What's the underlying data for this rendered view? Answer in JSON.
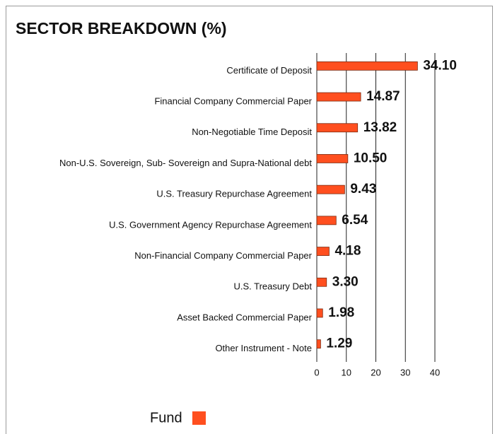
{
  "chart_data": {
    "type": "bar",
    "orientation": "horizontal",
    "title": "SECTOR BREAKDOWN (%)",
    "categories": [
      "Certificate of Deposit",
      "Financial Company Commercial Paper",
      "Non-Negotiable Time Deposit",
      "Non-U.S. Sovereign, Sub- Sovereign and Supra-National debt",
      "U.S. Treasury Repurchase Agreement",
      "U.S. Government Agency Repurchase Agreement",
      "Non-Financial Company Commercial Paper",
      "U.S. Treasury Debt",
      "Asset Backed Commercial Paper",
      "Other Instrument - Note"
    ],
    "series": [
      {
        "name": "Fund",
        "color": "#ff4f1f",
        "values": [
          34.1,
          14.87,
          13.82,
          10.5,
          9.43,
          6.54,
          4.18,
          3.3,
          1.98,
          1.29
        ],
        "value_labels": [
          "34.10",
          "14.87",
          "13.82",
          "10.50",
          "9.43",
          "6.54",
          "4.18",
          "3.30",
          "1.98",
          "1.29"
        ]
      }
    ],
    "xlim": [
      0,
      40
    ],
    "xticks": [
      0,
      10,
      20,
      30,
      40
    ],
    "grid": true,
    "legend": "bottom"
  }
}
